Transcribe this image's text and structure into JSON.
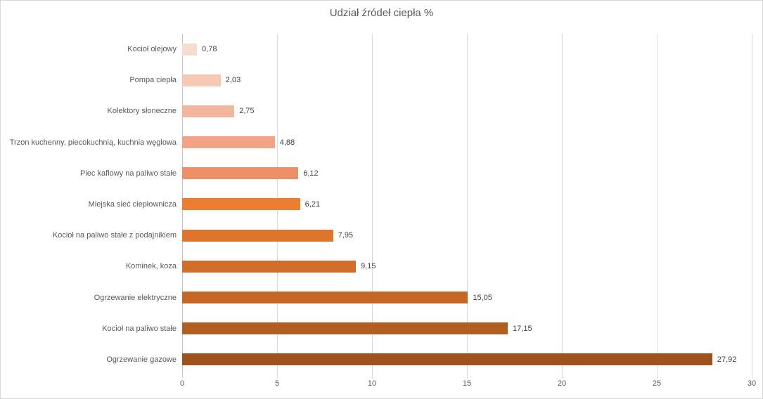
{
  "chart_data": {
    "type": "bar",
    "orientation": "horizontal",
    "title": "Udział źródeł ciepła %",
    "categories": [
      "Kocioł olejowy",
      "Pompa ciepła",
      "Kolektory słoneczne",
      "Trzon kuchenny, piecokuchnią, kuchnia węglowa",
      "Piec kaflowy na paliwo stałe",
      "Miejska sieć ciepłownicza",
      "Kocioł na paliwo stałe z podajnikiem",
      "Kominek, koza",
      "Ogrzewanie elektryczne",
      "Kocioł na paliwo stałe",
      "Ogrzewanie gazowe"
    ],
    "values": [
      0.78,
      2.03,
      2.75,
      4.88,
      6.12,
      6.21,
      7.95,
      9.15,
      15.05,
      17.15,
      27.92
    ],
    "value_labels": [
      "0,78",
      "2,03",
      "2,75",
      "4,88",
      "6,12",
      "6,21",
      "7,95",
      "9,15",
      "15,05",
      "17,15",
      "27,92"
    ],
    "bar_colors": [
      "#F8DCCF",
      "#F6C9B4",
      "#F3B59C",
      "#F1A384",
      "#EE9067",
      "#ED7D31",
      "#E0762D",
      "#D26E2A",
      "#C46626",
      "#B25E21",
      "#9E531E"
    ],
    "x_ticks": [
      0,
      5,
      10,
      15,
      20,
      25,
      30
    ],
    "x_tick_labels": [
      "0",
      "5",
      "10",
      "15",
      "20",
      "25",
      "30"
    ],
    "xlabel": "",
    "ylabel": "",
    "xlim": [
      0,
      30
    ],
    "grid": "vertical-only",
    "legend": "none",
    "colors": {
      "background": "#FFFFFF",
      "border": "#D9D9D9",
      "gridline": "#D9D9D9",
      "axis_line": "#C6C6C6",
      "title_text": "#595959",
      "axis_text": "#595959",
      "value_text": "#404040"
    }
  }
}
